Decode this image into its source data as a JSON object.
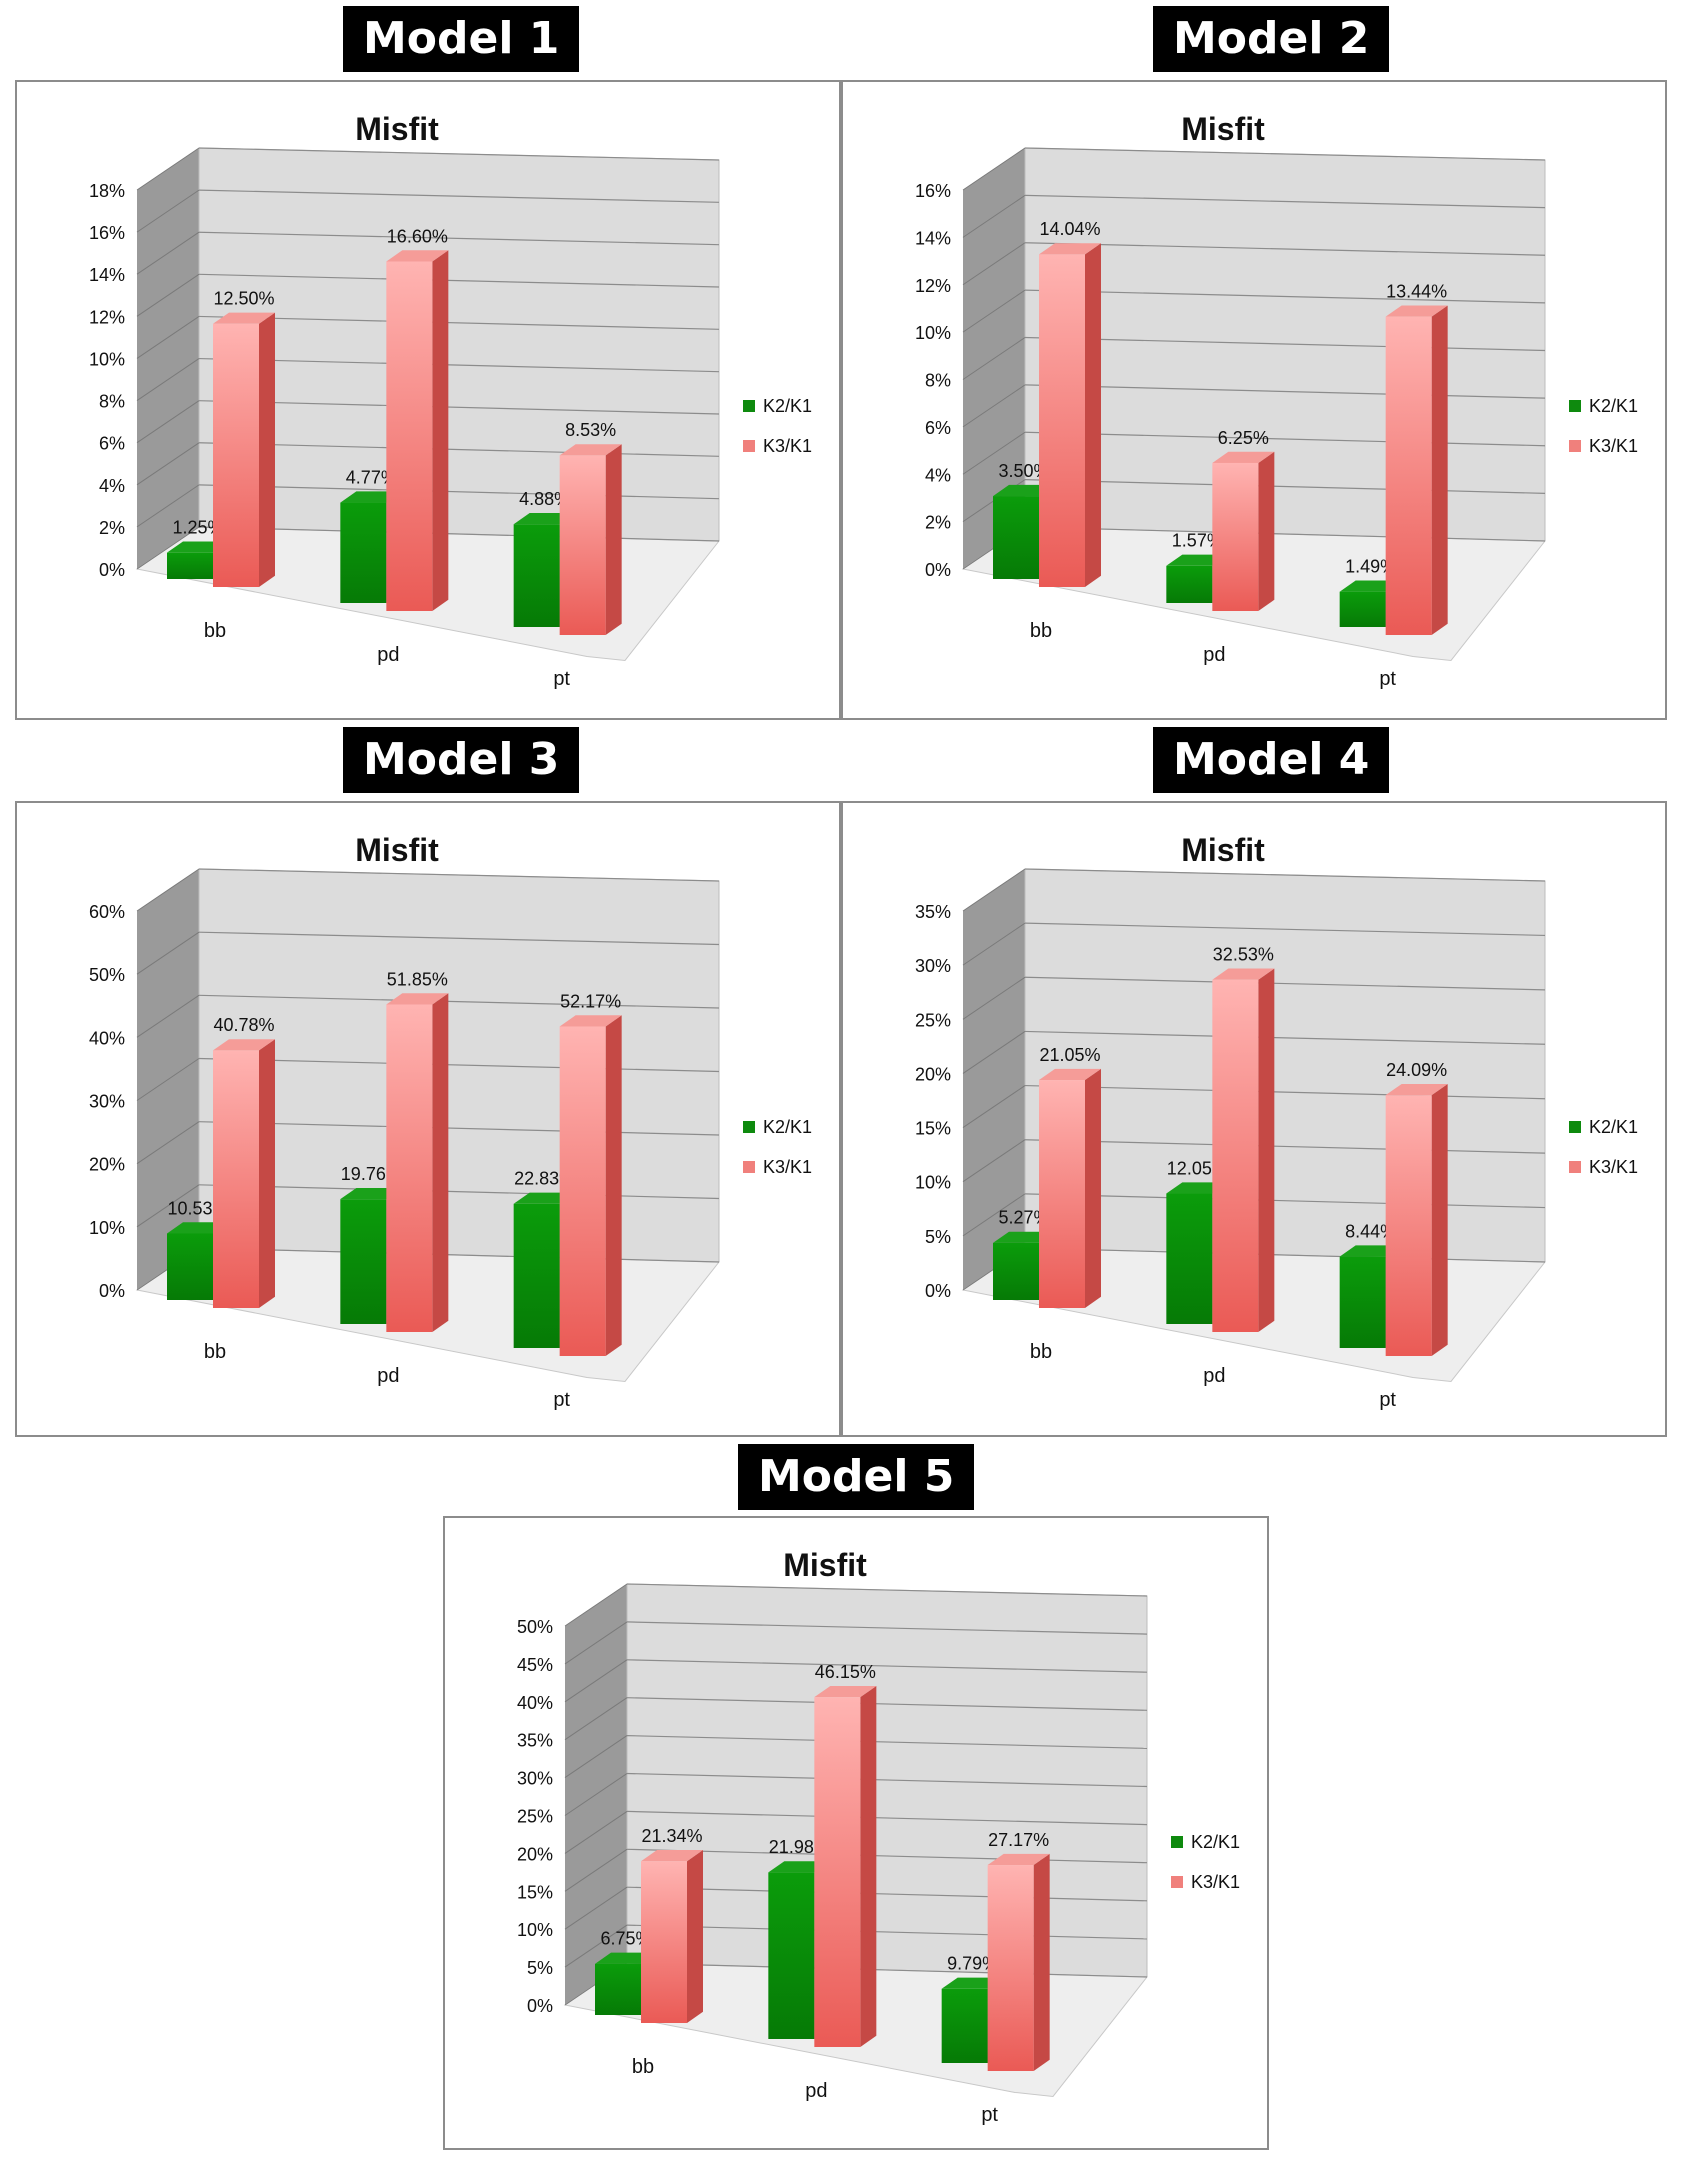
{
  "colors": {
    "k2": "#0e8a0e",
    "k3": "#f0807c"
  },
  "legend": [
    "K2/K1",
    "K3/K1"
  ],
  "chart_data": [
    {
      "type": "bar",
      "model": "Model 1",
      "title": "Misfit",
      "categories": [
        "bb",
        "pd",
        "pt"
      ],
      "series": [
        {
          "name": "K2/K1",
          "values": [
            1.25,
            4.77,
            4.88
          ],
          "labels": [
            "1.25%",
            "4.77%",
            "4.88%"
          ]
        },
        {
          "name": "K3/K1",
          "values": [
            12.5,
            16.6,
            8.53
          ],
          "labels": [
            "12.50%",
            "16.60%",
            "8.53%"
          ]
        }
      ],
      "ylim": [
        0,
        18
      ],
      "yticks": [
        "0%",
        "2%",
        "4%",
        "6%",
        "8%",
        "10%",
        "12%",
        "14%",
        "16%",
        "18%"
      ],
      "grid": true,
      "legend": "right"
    },
    {
      "type": "bar",
      "model": "Model 2",
      "title": "Misfit",
      "categories": [
        "bb",
        "pd",
        "pt"
      ],
      "series": [
        {
          "name": "K2/K1",
          "values": [
            3.5,
            1.57,
            1.49
          ],
          "labels": [
            "3.50%",
            "1.57%",
            "1.49%"
          ]
        },
        {
          "name": "K3/K1",
          "values": [
            14.04,
            6.25,
            13.44
          ],
          "labels": [
            "14.04%",
            "6.25%",
            "13.44%"
          ]
        }
      ],
      "ylim": [
        0,
        16
      ],
      "yticks": [
        "0%",
        "2%",
        "4%",
        "6%",
        "8%",
        "10%",
        "12%",
        "14%",
        "16%"
      ],
      "grid": true,
      "legend": "right"
    },
    {
      "type": "bar",
      "model": "Model 3",
      "title": "Misfit",
      "categories": [
        "bb",
        "pd",
        "pt"
      ],
      "series": [
        {
          "name": "K2/K1",
          "values": [
            10.53,
            19.76,
            22.83
          ],
          "labels": [
            "10.53%",
            "19.76%",
            "22.83%"
          ]
        },
        {
          "name": "K3/K1",
          "values": [
            40.78,
            51.85,
            52.17
          ],
          "labels": [
            "40.78%",
            "51.85%",
            "52.17%"
          ]
        }
      ],
      "ylim": [
        0,
        60
      ],
      "yticks": [
        "0%",
        "10%",
        "20%",
        "30%",
        "40%",
        "50%",
        "60%"
      ],
      "grid": true,
      "legend": "right"
    },
    {
      "type": "bar",
      "model": "Model 4",
      "title": "Misfit",
      "categories": [
        "bb",
        "pd",
        "pt"
      ],
      "series": [
        {
          "name": "K2/K1",
          "values": [
            5.27,
            12.05,
            8.44
          ],
          "labels": [
            "5.27%",
            "12.05%",
            "8.44%"
          ]
        },
        {
          "name": "K3/K1",
          "values": [
            21.05,
            32.53,
            24.09
          ],
          "labels": [
            "21.05%",
            "32.53%",
            "24.09%"
          ]
        }
      ],
      "ylim": [
        0,
        35
      ],
      "yticks": [
        "0%",
        "5%",
        "10%",
        "15%",
        "20%",
        "25%",
        "30%",
        "35%"
      ],
      "grid": true,
      "legend": "right"
    },
    {
      "type": "bar",
      "model": "Model 5",
      "title": "Misfit",
      "categories": [
        "bb",
        "pd",
        "pt"
      ],
      "series": [
        {
          "name": "K2/K1",
          "values": [
            6.75,
            21.98,
            9.79
          ],
          "labels": [
            "6.75%",
            "21.98%",
            "9.79%"
          ]
        },
        {
          "name": "K3/K1",
          "values": [
            21.34,
            46.15,
            27.17
          ],
          "labels": [
            "21.34%",
            "46.15%",
            "27.17%"
          ]
        }
      ],
      "ylim": [
        0,
        50
      ],
      "yticks": [
        "0%",
        "5%",
        "10%",
        "15%",
        "20%",
        "25%",
        "30%",
        "35%",
        "40%",
        "45%",
        "50%"
      ],
      "grid": true,
      "legend": "right"
    }
  ]
}
